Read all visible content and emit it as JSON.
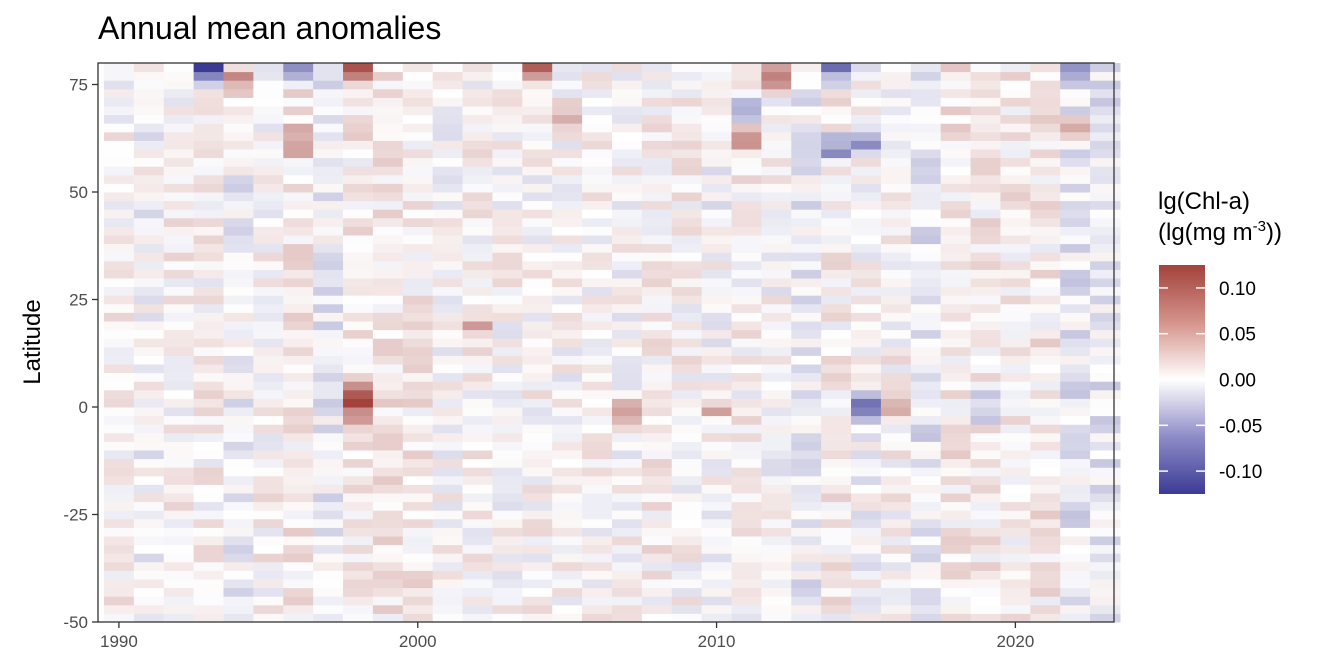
{
  "chart_data": {
    "type": "heatmap",
    "title": "Annual mean anomalies",
    "xlabel": "",
    "ylabel": "Latitude",
    "x_range": [
      1989.3,
      1993.3
    ],
    "x_years": [
      1989.5,
      2023.5
    ],
    "y_range": [
      -50,
      80
    ],
    "x_ticks": [
      1990,
      2000,
      2010,
      2020
    ],
    "y_ticks": [
      -50,
      -25,
      0,
      25,
      50,
      75
    ],
    "x_tick_labels": [
      "1990",
      "2000",
      "2010",
      "2020"
    ],
    "y_tick_labels": [
      "-50",
      "-25",
      "0",
      "25",
      "50",
      "75"
    ],
    "years": [
      1990,
      1991,
      1992,
      1993,
      1994,
      1995,
      1996,
      1997,
      1998,
      1999,
      2000,
      2001,
      2002,
      2003,
      2004,
      2005,
      2006,
      2007,
      2008,
      2009,
      2010,
      2011,
      2012,
      2013,
      2014,
      2015,
      2016,
      2017,
      2018,
      2019,
      2020,
      2021,
      2022,
      2023
    ],
    "latitude_step": 2,
    "features": [
      {
        "year": 1993,
        "lat": 79,
        "value": -0.11
      },
      {
        "year": 1994,
        "lat": 76,
        "value": 0.09
      },
      {
        "year": 1996,
        "lat": 79,
        "value": -0.08
      },
      {
        "year": 1996,
        "lat": 62,
        "value": 0.08
      },
      {
        "year": 1998,
        "lat": 0,
        "value": 0.11
      },
      {
        "year": 1998,
        "lat": 79,
        "value": 0.08
      },
      {
        "year": 1998,
        "lat": 5,
        "value": 0.05
      },
      {
        "year": 2002,
        "lat": 19,
        "value": 0.05
      },
      {
        "year": 2005,
        "lat": 68,
        "value": 0.07
      },
      {
        "year": 2007,
        "lat": 0,
        "value": 0.06
      },
      {
        "year": 2010,
        "lat": 0,
        "value": 0.06
      },
      {
        "year": 2011,
        "lat": 70,
        "value": -0.09
      },
      {
        "year": 2011,
        "lat": 62,
        "value": 0.07
      },
      {
        "year": 2012,
        "lat": 76,
        "value": 0.11
      },
      {
        "year": 2014,
        "lat": 60,
        "value": -0.08
      },
      {
        "year": 2014,
        "lat": 79,
        "value": -0.1
      },
      {
        "year": 2015,
        "lat": 0,
        "value": -0.09
      },
      {
        "year": 2015,
        "lat": 62,
        "value": -0.07
      },
      {
        "year": 2016,
        "lat": 0,
        "value": 0.05
      },
      {
        "year": 2019,
        "lat": 0,
        "value": -0.07
      },
      {
        "year": 2022,
        "lat": 64,
        "value": 0.08
      },
      {
        "year": 2022,
        "lat": 79,
        "value": -0.08
      },
      {
        "year": 2004,
        "lat": 79,
        "value": 0.09
      }
    ],
    "legend": {
      "title_line1": "lg(Chl-a)",
      "title_line2_prefix": "(lg(mg m",
      "title_line2_sup": "-3",
      "title_line2_suffix": "))",
      "range": [
        -0.125,
        0.125
      ],
      "breaks": [
        0.1,
        0.05,
        0.0,
        -0.05,
        -0.1
      ],
      "labels": [
        "0.10",
        "0.05",
        "0.00",
        "-0.05",
        "-0.10"
      ],
      "colors": {
        "low": "#3b3b96",
        "mid": "#ffffff",
        "high": "#a2423b"
      }
    }
  }
}
